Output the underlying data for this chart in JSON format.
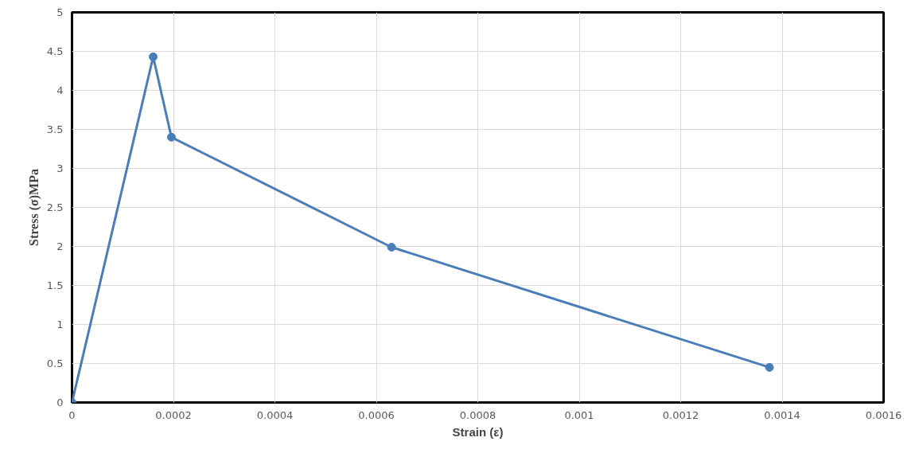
{
  "chart_data": {
    "type": "line",
    "xlabel": "Strain (ε)",
    "ylabel": "Stress (σ)MPa",
    "x": [
      0,
      0.00016,
      0.000196,
      0.00063,
      0.001375
    ],
    "series": [
      {
        "color": "#4a7ebb",
        "values": [
          0,
          4.43,
          3.4,
          1.99,
          0.45
        ]
      }
    ],
    "xlim": [
      0,
      0.0016
    ],
    "xticks": [
      0,
      0.0002,
      0.0004,
      0.0006,
      0.0008,
      0.001,
      0.0012,
      0.0014,
      0.0016
    ],
    "ylim": [
      0,
      5
    ],
    "yticks": [
      0,
      0.5,
      1,
      1.5,
      2,
      2.5,
      3,
      3.5,
      4,
      4.5,
      5
    ],
    "grid": true,
    "marker": "circle",
    "line_style": "solid"
  }
}
